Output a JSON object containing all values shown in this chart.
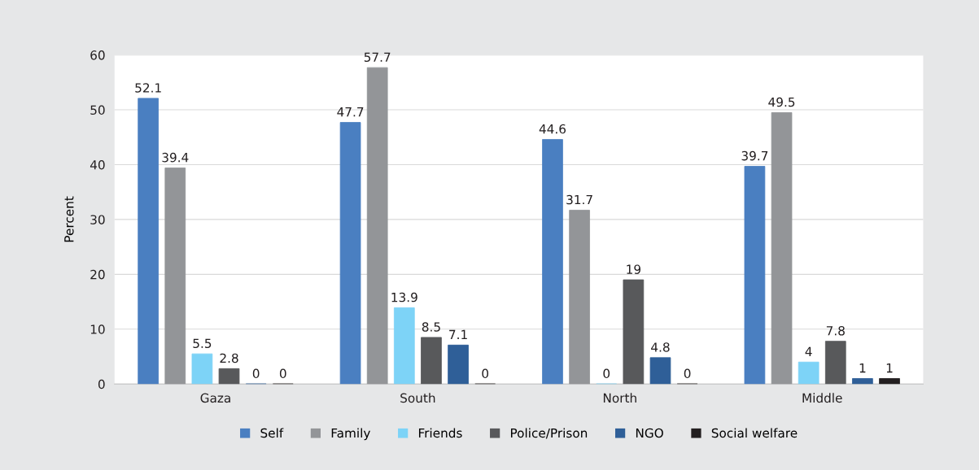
{
  "chart_data": {
    "type": "bar",
    "ylabel": "Percent",
    "categories": [
      "Gaza",
      "South",
      "North",
      "Middle"
    ],
    "series": [
      {
        "name": "Self",
        "color": "#4a7fc1",
        "values": [
          52.1,
          47.7,
          44.6,
          39.7
        ]
      },
      {
        "name": "Family",
        "color": "#939598",
        "values": [
          39.4,
          57.7,
          31.7,
          49.5
        ]
      },
      {
        "name": "Friends",
        "color": "#7dd3f7",
        "values": [
          5.5,
          13.9,
          0,
          4
        ]
      },
      {
        "name": "Police/Prison",
        "color": "#58595b",
        "values": [
          2.8,
          8.5,
          19,
          7.8
        ]
      },
      {
        "name": "NGO",
        "color": "#2f5f98",
        "values": [
          0,
          7.1,
          4.8,
          1
        ]
      },
      {
        "name": "Social welfare",
        "color": "#231f20",
        "values": [
          0,
          0,
          0,
          1
        ]
      }
    ],
    "ylim": [
      0,
      60
    ],
    "yticks": [
      0,
      10,
      20,
      30,
      40,
      50,
      60
    ],
    "grid": "y",
    "legend": "bottom",
    "data_labels": true
  }
}
